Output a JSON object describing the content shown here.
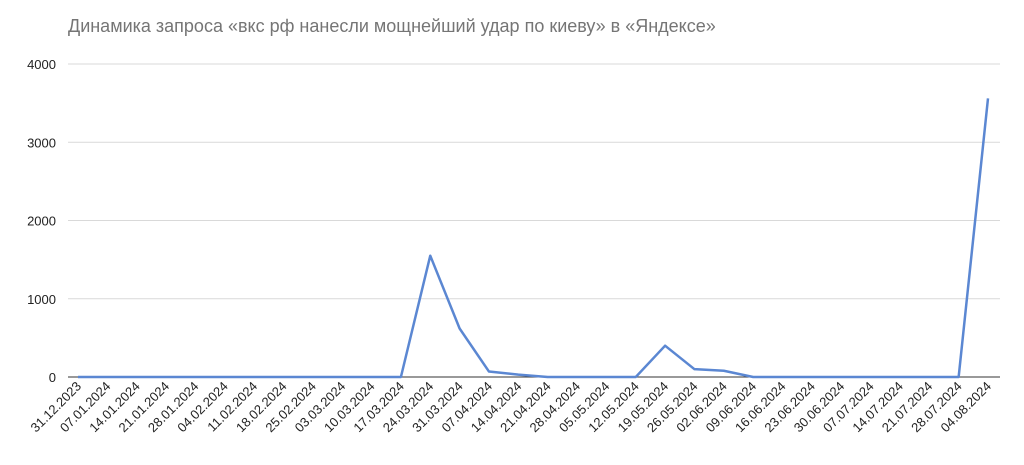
{
  "chart_data": {
    "type": "line",
    "title": "Динамика запроса «вкс рф нанесли мощнейший удар по киеву» в «Яндексе»",
    "categories": [
      "31.12.2023",
      "07.01.2024",
      "14.01.2024",
      "21.01.2024",
      "28.01.2024",
      "04.02.2024",
      "11.02.2024",
      "18.02.2024",
      "25.02.2024",
      "03.03.2024",
      "10.03.2024",
      "17.03.2024",
      "24.03.2024",
      "31.03.2024",
      "07.04.2024",
      "14.04.2024",
      "21.04.2024",
      "28.04.2024",
      "05.05.2024",
      "12.05.2024",
      "19.05.2024",
      "26.05.2024",
      "02.06.2024",
      "09.06.2024",
      "16.06.2024",
      "23.06.2024",
      "30.06.2024",
      "07.07.2024",
      "14.07.2024",
      "21.07.2024",
      "28.07.2024",
      "04.08.2024"
    ],
    "series": [
      {
        "name": "вкс рф нанесли мощнейший удар по киеву",
        "color": "#5b87d2",
        "values": [
          0,
          0,
          0,
          0,
          0,
          0,
          0,
          0,
          0,
          0,
          0,
          0,
          1550,
          620,
          70,
          30,
          0,
          0,
          0,
          0,
          400,
          100,
          80,
          0,
          0,
          0,
          0,
          0,
          0,
          0,
          0,
          3560
        ]
      }
    ],
    "ylim": [
      0,
      4000
    ],
    "yticks": [
      0,
      1000,
      2000,
      3000,
      4000
    ],
    "grid": true
  }
}
